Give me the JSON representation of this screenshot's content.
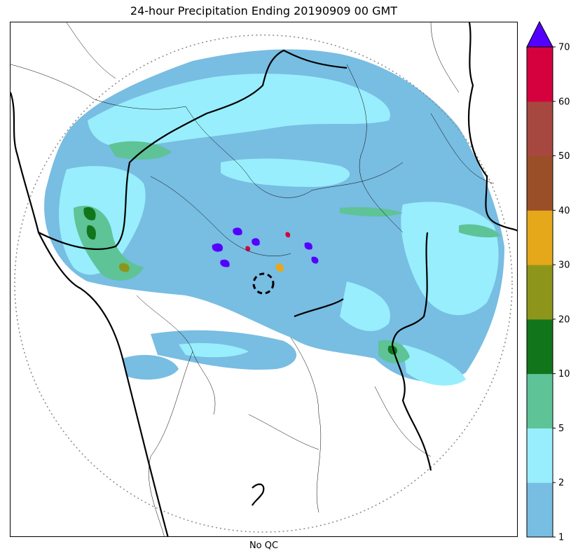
{
  "title": "24-hour Precipitation Ending 20190909 00 GMT",
  "xlabel": "No QC",
  "colorbar": {
    "ticks": [
      "1",
      "2",
      "5",
      "10",
      "20",
      "30",
      "40",
      "50",
      "60",
      "70"
    ],
    "colors": [
      "#78bde2",
      "#98eefc",
      "#5ec396",
      "#11751b",
      "#8d961a",
      "#e5a81a",
      "#9b4f29",
      "#a6483f",
      "#d5013f"
    ],
    "extend_color": "#5400ff"
  },
  "legend_icons": [
    "radar-range-ring",
    "radar-site-marker"
  ]
}
